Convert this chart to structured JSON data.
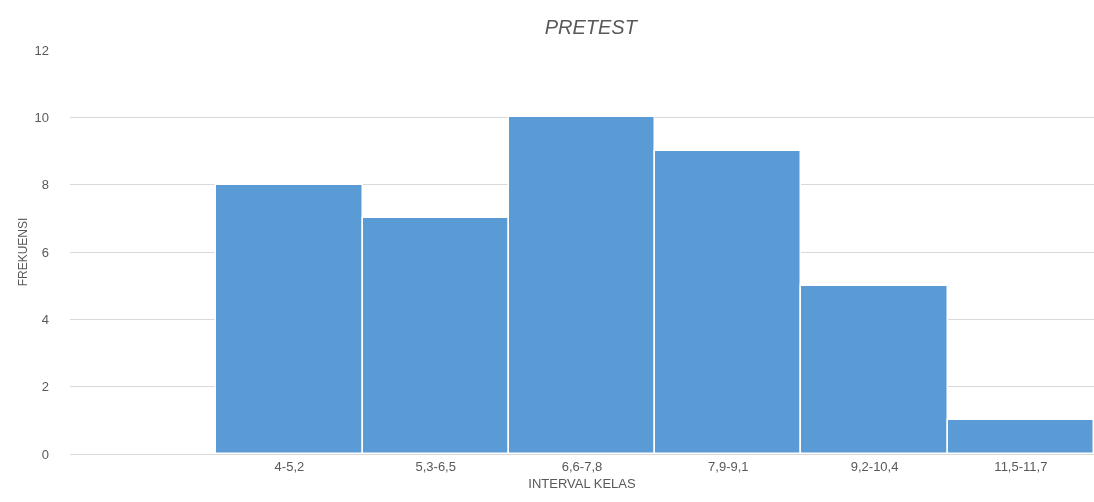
{
  "chart_data": {
    "type": "bar",
    "title": "PRETEST",
    "xlabel": "INTERVAL KELAS",
    "ylabel": "FREKUENSI",
    "categories": [
      null,
      "4-5,2",
      "5,3-6,5",
      "6,6-7,8",
      "7,9-9,1",
      "9,2-10,4",
      "11,5-11,7"
    ],
    "values": [
      null,
      8,
      7,
      10,
      9,
      5,
      1
    ],
    "color": "#5b9bd5",
    "ylim": [
      0,
      12
    ],
    "yticks": [
      0,
      2,
      4,
      6,
      8,
      10,
      12
    ],
    "grid": "y"
  }
}
